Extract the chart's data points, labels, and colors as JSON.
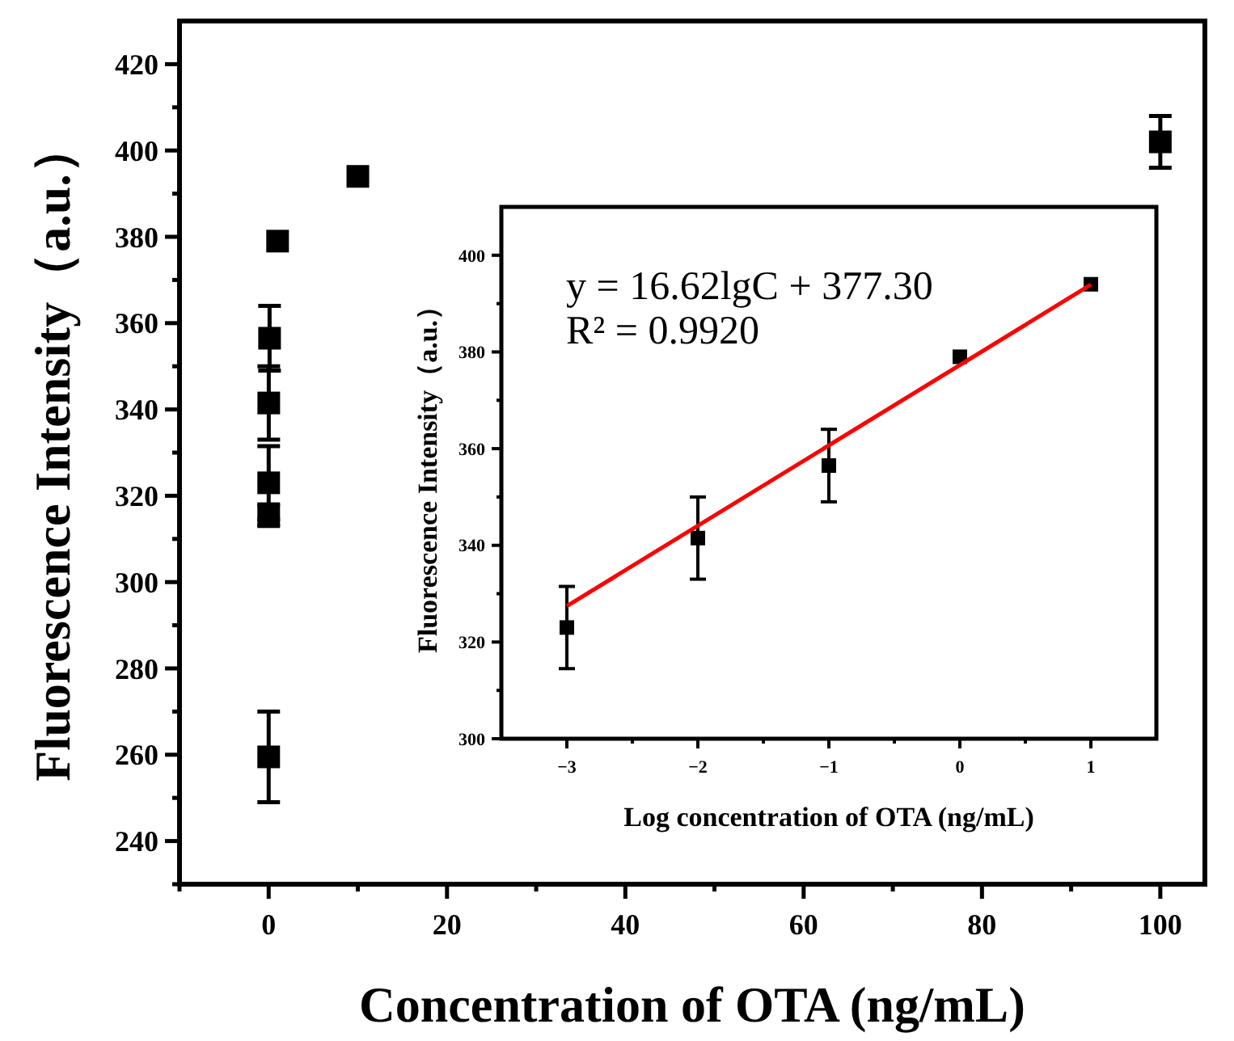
{
  "chart_data": [
    {
      "type": "scatter",
      "xlabel": "Concentration of OTA (ng/mL)",
      "ylabel": "Fluorescence Intensity（a.u.）",
      "marker": "square",
      "grid": false,
      "xlim": [
        -10,
        105
      ],
      "ylim": [
        230,
        430
      ],
      "xticks": [
        {
          "value": -10,
          "label": null
        },
        0,
        {
          "value": 10,
          "label": null
        },
        20,
        {
          "value": 30,
          "label": null
        },
        40,
        {
          "value": 50,
          "label": null
        },
        60,
        {
          "value": 70,
          "label": null
        },
        80,
        {
          "value": 90,
          "label": null
        },
        100
      ],
      "yticks": [
        {
          "value": 230,
          "label": null
        },
        240,
        {
          "value": 250,
          "label": null
        },
        260,
        {
          "value": 270,
          "label": null
        },
        280,
        {
          "value": 290,
          "label": null
        },
        300,
        {
          "value": 310,
          "label": null
        },
        320,
        {
          "value": 330,
          "label": null
        },
        340,
        {
          "value": 350,
          "label": null
        },
        360,
        {
          "value": 370,
          "label": null
        },
        380,
        {
          "value": 390,
          "label": null
        },
        400,
        {
          "value": 410,
          "label": null
        },
        420
      ],
      "series": [
        {
          "color": "#000000",
          "x": [
            0,
            0.0001,
            0.001,
            0.01,
            0.1,
            1,
            10,
            100
          ],
          "values": [
            259.5,
            315.5,
            323,
            341.5,
            356.5,
            379,
            394,
            402
          ],
          "errors": [
            10.5,
            2.5,
            8.5,
            8.5,
            7.5,
            null,
            null,
            6
          ]
        }
      ]
    },
    {
      "type": "scatter",
      "xlabel": "Log concentration of OTA (ng/mL)",
      "ylabel": "Fluorescence Intensity（a.u.）",
      "marker": "square",
      "grid": false,
      "xlim": [
        -3.5,
        1.5
      ],
      "ylim": [
        300,
        410
      ],
      "xticks": [
        {
          "value": -3,
          "label": "−3"
        },
        {
          "value": -2.5,
          "label": null
        },
        {
          "value": -2,
          "label": "−2"
        },
        {
          "value": -1.5,
          "label": null
        },
        {
          "value": -1,
          "label": "−1"
        },
        {
          "value": -0.5,
          "label": null
        },
        0,
        {
          "value": 0.5,
          "label": null
        },
        1
      ],
      "yticks": [
        300,
        {
          "value": 310,
          "label": null
        },
        320,
        {
          "value": 330,
          "label": null
        },
        340,
        {
          "value": 350,
          "label": null
        },
        360,
        {
          "value": 370,
          "label": null
        },
        380,
        {
          "value": 390,
          "label": null
        },
        400
      ],
      "annotations": [
        "y = 16.62lgC + 377.30",
        "R² = 0.9920"
      ],
      "series": [
        {
          "color": "#000000",
          "x": [
            -3,
            -2,
            -1,
            0,
            1
          ],
          "values": [
            323,
            341.5,
            356.5,
            379,
            394
          ],
          "errors": [
            8.5,
            8.5,
            7.5,
            null,
            null
          ]
        },
        {
          "type": "line",
          "color": "#ff0000",
          "marker": "none",
          "x": [
            -3,
            1
          ],
          "values": [
            327.44,
            393.92
          ]
        }
      ]
    }
  ]
}
